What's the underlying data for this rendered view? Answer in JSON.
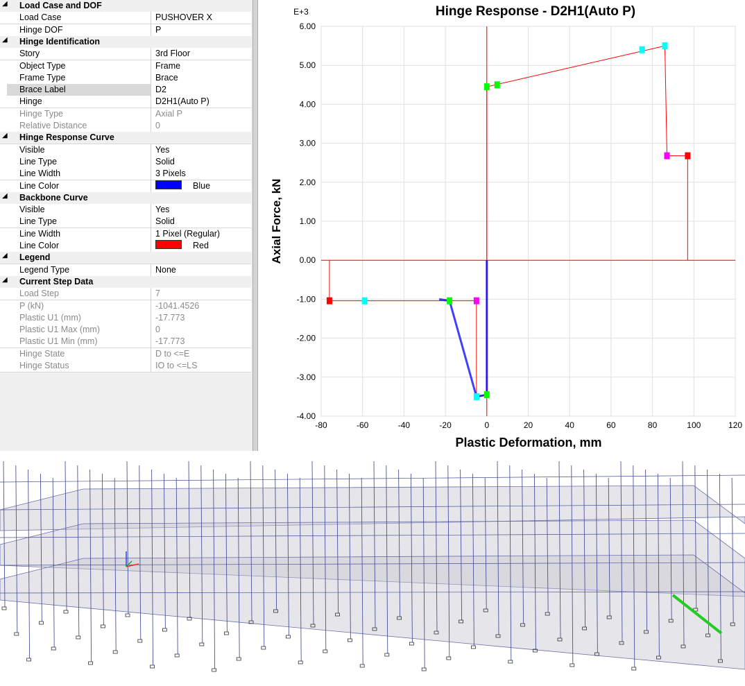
{
  "property_grid": {
    "sections": [
      {
        "title": "Load Case and DOF",
        "rows": [
          {
            "label": "Load Case",
            "value": "PUSHOVER X"
          },
          {
            "label": "Hinge DOF",
            "value": "P"
          }
        ]
      },
      {
        "title": "Hinge Identification",
        "rows": [
          {
            "label": "Story",
            "value": "3rd Floor"
          },
          {
            "label": "Object Type",
            "value": "Frame"
          },
          {
            "label": "Frame Type",
            "value": "Brace"
          },
          {
            "label": "Brace Label",
            "value": "D2",
            "selected": true
          },
          {
            "label": "Hinge",
            "value": "D2H1(Auto P)"
          },
          {
            "label": "Hinge Type",
            "value": "Axial P",
            "disabled": true
          },
          {
            "label": "Relative Distance",
            "value": "0",
            "disabled": true
          }
        ]
      },
      {
        "title": "Hinge Response Curve",
        "rows": [
          {
            "label": "Visible",
            "value": "Yes"
          },
          {
            "label": "Line Type",
            "value": "Solid"
          },
          {
            "label": "Line Width",
            "value": "3 Pixels"
          },
          {
            "label": "Line Color",
            "value": "Blue",
            "swatch": "#0000ff"
          }
        ]
      },
      {
        "title": "Backbone Curve",
        "rows": [
          {
            "label": "Visible",
            "value": "Yes"
          },
          {
            "label": "Line Type",
            "value": "Solid"
          },
          {
            "label": "Line Width",
            "value": "1 Pixel (Regular)"
          },
          {
            "label": "Line Color",
            "value": "Red",
            "swatch": "#ff0000"
          }
        ]
      },
      {
        "title": "Legend",
        "rows": [
          {
            "label": "Legend Type",
            "value": "None"
          }
        ]
      },
      {
        "title": "Current Step Data",
        "rows": [
          {
            "label": "Load Step",
            "value": "7",
            "disabled": true
          },
          {
            "label": "P (kN)",
            "value": "-1041.4526",
            "disabled": true
          },
          {
            "label": "Plastic U1 (mm)",
            "value": "-17.773",
            "disabled": true
          },
          {
            "label": "Plastic U1 Max (mm)",
            "value": "0",
            "disabled": true
          },
          {
            "label": "Plastic U1 Min (mm)",
            "value": "-17.773",
            "disabled": true
          },
          {
            "label": "Hinge State",
            "value": "D to <=E",
            "disabled": true
          },
          {
            "label": "Hinge Status",
            "value": "IO to <=LS",
            "disabled": true
          }
        ]
      }
    ]
  },
  "chart_data": {
    "type": "line",
    "title": "Hinge Response - D2H1(Auto P)",
    "y_multiplier": "E+3",
    "xlabel": "Plastic Deformation, mm",
    "ylabel": "Axial Force, kN",
    "xlim": [
      -80,
      120
    ],
    "ylim": [
      -4,
      6
    ],
    "grid": true,
    "xticks": [
      -80,
      -60,
      -40,
      -20,
      0,
      20,
      40,
      60,
      80,
      100,
      120
    ],
    "yticks": [
      {
        "value": 6,
        "label": "6.00"
      },
      {
        "value": 5,
        "label": "5.00"
      },
      {
        "value": 4,
        "label": "4.00"
      },
      {
        "value": 3,
        "label": "3.00"
      },
      {
        "value": 2,
        "label": "2.00"
      },
      {
        "value": 1,
        "label": "1.00"
      },
      {
        "value": 0,
        "label": "0.00"
      },
      {
        "value": -1,
        "label": "-1.00"
      },
      {
        "value": -2,
        "label": "-2.00"
      },
      {
        "value": -3,
        "label": "-3.00"
      },
      {
        "value": -4,
        "label": "-4.00"
      }
    ],
    "series": [
      {
        "color": "#ff0000",
        "width": 1,
        "x": [
          -76,
          -76,
          -5,
          -5,
          0,
          0,
          86,
          87,
          97,
          97
        ],
        "values": [
          0,
          -1.04,
          -1.04,
          -3.5,
          -3.45,
          4.45,
          5.5,
          2.68,
          2.68,
          0
        ]
      },
      {
        "color": "#0000ff",
        "width": 3,
        "x": [
          0,
          0,
          -5,
          -18,
          -23
        ],
        "values": [
          0,
          -3.45,
          -3.5,
          -1.04,
          -1.0
        ]
      }
    ],
    "markers": [
      {
        "x": -76,
        "y": -1.04,
        "color": "#ff0000"
      },
      {
        "x": -59,
        "y": -1.04,
        "color": "#00ffff"
      },
      {
        "x": -18,
        "y": -1.04,
        "color": "#00ff00"
      },
      {
        "x": -5,
        "y": -1.04,
        "color": "#ff00ff"
      },
      {
        "x": -5,
        "y": -3.5,
        "color": "#00ffff"
      },
      {
        "x": 0,
        "y": -3.45,
        "color": "#00ff00"
      },
      {
        "x": 0,
        "y": 4.45,
        "color": "#00ff00"
      },
      {
        "x": 5,
        "y": 4.5,
        "color": "#00ff00"
      },
      {
        "x": 75,
        "y": 5.4,
        "color": "#00ffff"
      },
      {
        "x": 86,
        "y": 5.5,
        "color": "#00ffff"
      },
      {
        "x": 87,
        "y": 2.68,
        "color": "#ff00ff"
      },
      {
        "x": 97,
        "y": 2.68,
        "color": "#ff0000"
      }
    ]
  }
}
